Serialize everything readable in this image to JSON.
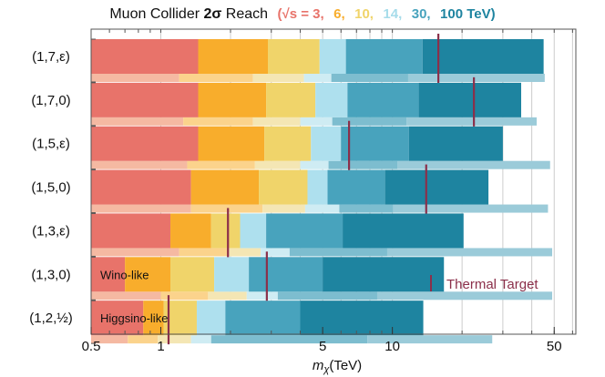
{
  "chart_data": {
    "type": "bar",
    "title": {
      "prefix": "Muon Collider ",
      "bold": "2σ",
      "suffix": " Reach",
      "energies": [
        {
          "text": "(√s = 3,",
          "color": "#e8736a"
        },
        {
          "text": "6,",
          "color": "#f8ad2c"
        },
        {
          "text": "10,",
          "color": "#f0d46a"
        },
        {
          "text": "14,",
          "color": "#a6dcea"
        },
        {
          "text": "30,",
          "color": "#48a3bd"
        },
        {
          "text": "100 TeV)",
          "color": "#1e84a0"
        }
      ]
    },
    "xlabel": "m_χ(TeV)",
    "xscale": "log",
    "xlim": [
      0.5,
      62
    ],
    "xticks": [
      {
        "value": 0.5,
        "label": "0.5"
      },
      {
        "value": 1,
        "label": "1"
      },
      {
        "value": 5,
        "label": "5"
      },
      {
        "value": 10,
        "label": "10"
      },
      {
        "value": 50,
        "label": "50"
      }
    ],
    "collider_energies_tev": [
      3,
      6,
      10,
      14,
      30,
      100
    ],
    "colors_main": [
      "#e8736a",
      "#f8ad2c",
      "#f0d46a",
      "#aee0ee",
      "#48a3bd",
      "#1e84a0"
    ],
    "colors_secondary": [
      "#f5b9a2",
      "#fbd38c",
      "#f4e6b4",
      "#cfecf3",
      "#7dbdcf",
      "#9bcbd9"
    ],
    "rows": [
      {
        "label": "(1,7,ε)",
        "main": [
          1.45,
          2.9,
          4.85,
          6.3,
          13.5,
          45
        ],
        "secondary": [
          1.2,
          2.5,
          4.15,
          5.45,
          11.7,
          45.5
        ],
        "thermal": 15.8
      },
      {
        "label": "(1,7,0)",
        "main": [
          1.45,
          2.85,
          4.65,
          6.4,
          13.0,
          36
        ],
        "secondary": [
          1.25,
          2.5,
          4.0,
          5.5,
          11.5,
          42
        ],
        "thermal": 22.5
      },
      {
        "label": "(1,5,ε)",
        "main": [
          1.45,
          2.8,
          4.45,
          6.0,
          11.8,
          30
        ],
        "secondary": [
          1.3,
          2.55,
          4.0,
          5.3,
          10.5,
          48
        ],
        "thermal": 6.5
      },
      {
        "label": "(1,5,0)",
        "main": [
          1.35,
          2.65,
          4.3,
          5.25,
          9.3,
          26
        ],
        "secondary": [
          1.35,
          2.75,
          4.2,
          5.9,
          10.1,
          47
        ],
        "thermal": 14.0
      },
      {
        "label": "(1,3,ε)",
        "main": [
          1.1,
          1.65,
          2.2,
          2.85,
          6.1,
          20.3
        ],
        "secondary": [
          1.2,
          1.95,
          2.7,
          3.6,
          9.5,
          49
        ],
        "thermal": 1.95
      },
      {
        "label": "(1,3,0)",
        "main": [
          0.7,
          1.1,
          1.7,
          2.4,
          5.0,
          16.7
        ],
        "secondary": [
          1.0,
          1.6,
          2.35,
          3.2,
          8.6,
          49
        ],
        "thermal": 2.87,
        "annotation": "Wino-like"
      },
      {
        "label": "(1,2,½)",
        "main": [
          0.84,
          1.03,
          1.43,
          1.9,
          4.0,
          13.6
        ],
        "secondary": [
          0.72,
          0.97,
          1.35,
          1.65,
          7.8,
          27
        ],
        "thermal": 1.08,
        "annotation": "Higgsino-like"
      }
    ],
    "legend": {
      "label": "Thermal Target",
      "color": "#8b2f4a"
    }
  }
}
